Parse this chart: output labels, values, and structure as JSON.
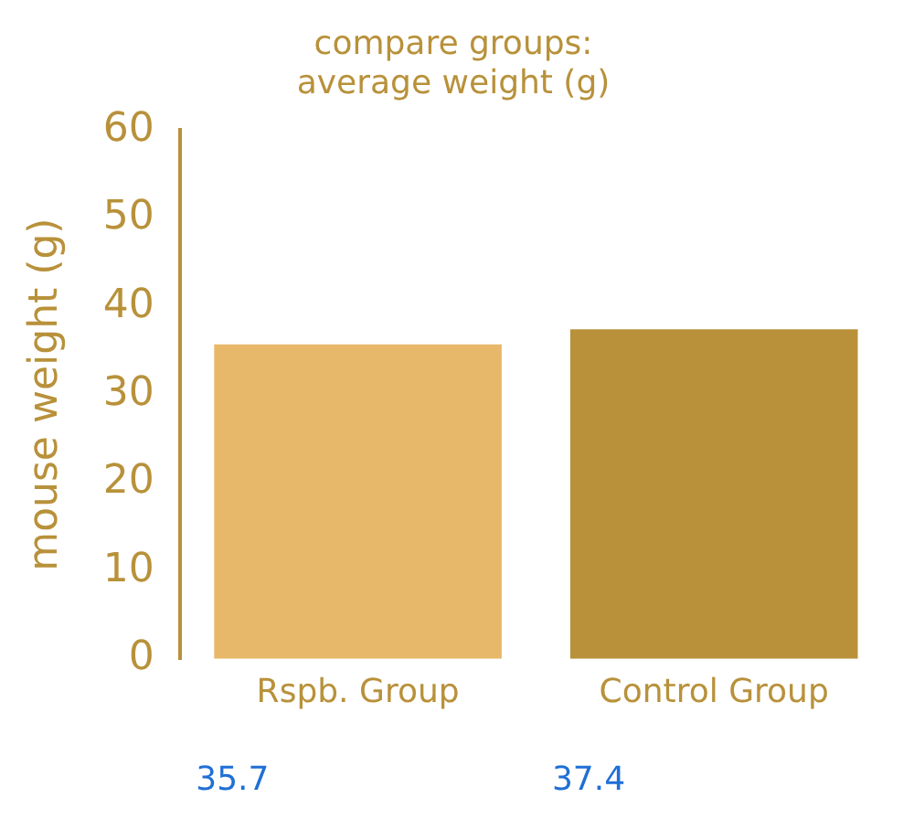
{
  "chart_data": {
    "type": "bar",
    "title": "compare groups:\naverage weight (g)",
    "ylabel": "mouse weight (g)",
    "categories": [
      "Rspb. Group",
      "Control Group"
    ],
    "values": [
      35.7,
      37.4
    ],
    "colors": [
      "#e8b86a",
      "#b8913a"
    ],
    "value_labels": [
      "35.7",
      "37.4"
    ],
    "ylim": [
      0,
      60
    ],
    "yticks": [
      0,
      10,
      20,
      30,
      40,
      50,
      60
    ],
    "grid": false,
    "legend": false
  }
}
